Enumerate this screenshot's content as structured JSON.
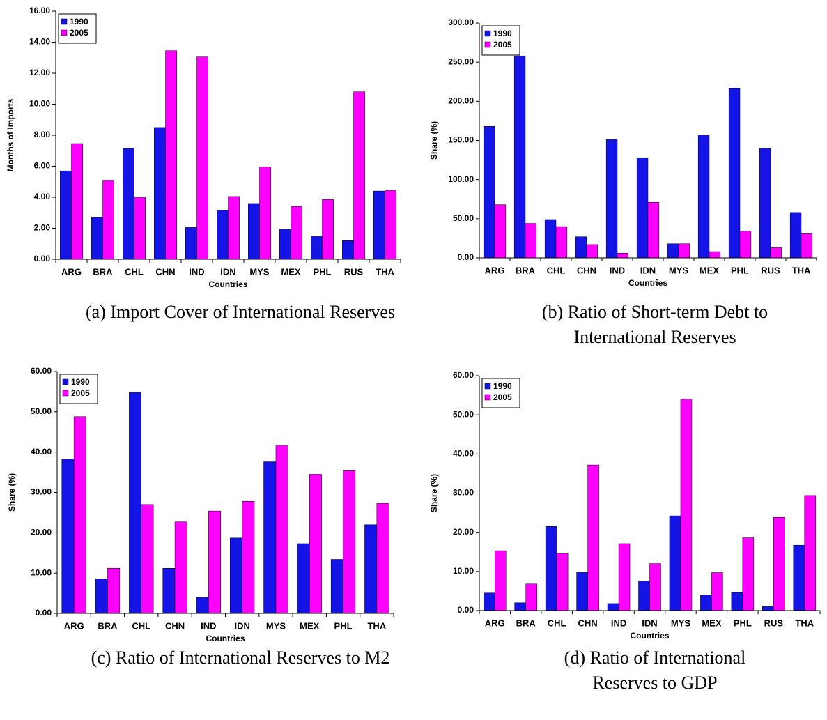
{
  "chart_data": [
    {
      "type": "bar",
      "caption": [
        "(a) Import Cover of International Reserves"
      ],
      "ylabel": "Months of Imports",
      "xlabel": "Countries",
      "categories": [
        "ARG",
        "BRA",
        "CHL",
        "CHN",
        "IND",
        "IDN",
        "MYS",
        "MEX",
        "PHL",
        "RUS",
        "THA"
      ],
      "series": [
        {
          "name": "1990",
          "color": "#1414e6",
          "values": [
            5.7,
            2.7,
            7.15,
            8.5,
            2.05,
            3.15,
            3.6,
            1.95,
            1.5,
            1.2,
            4.4
          ]
        },
        {
          "name": "2005",
          "color": "#ff00ff",
          "values": [
            7.46,
            5.1,
            4.0,
            13.45,
            13.05,
            4.05,
            5.95,
            3.4,
            3.85,
            10.8,
            4.45
          ]
        }
      ],
      "ylim": [
        0,
        16
      ],
      "yticks": [
        {
          "value": 0,
          "label": "0.00"
        },
        {
          "value": 2,
          "label": "2.00"
        },
        {
          "value": 4,
          "label": "4.00"
        },
        {
          "value": 6,
          "label": "6.00"
        },
        {
          "value": 8,
          "label": "8.00"
        },
        {
          "value": 10,
          "label": "10.00"
        },
        {
          "value": 12,
          "label": "12.00"
        },
        {
          "value": 14,
          "label": "14.00"
        },
        {
          "value": 16,
          "label": "16.00"
        }
      ],
      "legend": "top-left",
      "grid": false
    },
    {
      "type": "bar",
      "caption": [
        "(b) Ratio of Short-term Debt to",
        "International Reserves"
      ],
      "ylabel": "Share (%)",
      "xlabel": "Countries",
      "categories": [
        "ARG",
        "BRA",
        "CHL",
        "CHN",
        "IND",
        "IDN",
        "MYS",
        "MEX",
        "PHL",
        "RUS",
        "THA"
      ],
      "series": [
        {
          "name": "1990",
          "color": "#1414e6",
          "values": [
            168,
            258,
            49,
            27,
            151,
            128,
            18,
            157,
            217,
            140,
            58
          ]
        },
        {
          "name": "2005",
          "color": "#ff00ff",
          "values": [
            68,
            44,
            40,
            17,
            6,
            71,
            18,
            8,
            34,
            13,
            31
          ]
        }
      ],
      "ylim": [
        0,
        300
      ],
      "yticks": [
        {
          "value": 0,
          "label": "0.00"
        },
        {
          "value": 50,
          "label": "50.00"
        },
        {
          "value": 100,
          "label": "100.00"
        },
        {
          "value": 150,
          "label": "150.00"
        },
        {
          "value": 200,
          "label": "200.00"
        },
        {
          "value": 250,
          "label": "250.00"
        },
        {
          "value": 300,
          "label": "300.00"
        }
      ],
      "legend": "top-left",
      "grid": false
    },
    {
      "type": "bar",
      "caption": [
        "(c) Ratio of International Reserves to M2"
      ],
      "ylabel": "Share (%)",
      "xlabel": "Countries",
      "categories": [
        "ARG",
        "BRA",
        "CHL",
        "CHN",
        "IND",
        "IDN",
        "MYS",
        "MEX",
        "PHL",
        "THA"
      ],
      "series": [
        {
          "name": "1990",
          "color": "#1414e6",
          "values": [
            38.3,
            8.6,
            54.8,
            11.2,
            4.0,
            18.7,
            37.6,
            17.3,
            13.4,
            22.0
          ]
        },
        {
          "name": "2005",
          "color": "#ff00ff",
          "values": [
            48.8,
            11.2,
            27.0,
            22.7,
            25.4,
            27.8,
            41.7,
            34.5,
            35.4,
            27.3
          ]
        }
      ],
      "ylim": [
        0,
        60
      ],
      "yticks": [
        {
          "value": 0,
          "label": "0.00"
        },
        {
          "value": 10,
          "label": "10.00"
        },
        {
          "value": 20,
          "label": "20.00"
        },
        {
          "value": 30,
          "label": "30.00"
        },
        {
          "value": 40,
          "label": "40.00"
        },
        {
          "value": 50,
          "label": "50.00"
        },
        {
          "value": 60,
          "label": "60.00"
        }
      ],
      "legend": "top-left",
      "grid": false
    },
    {
      "type": "bar",
      "caption": [
        "(d) Ratio of International",
        "Reserves to GDP"
      ],
      "ylabel": "Share (%)",
      "xlabel": "Countries",
      "categories": [
        "ARG",
        "BRA",
        "CHL",
        "CHN",
        "IND",
        "IDN",
        "MYS",
        "MEX",
        "PHL",
        "RUS",
        "THA"
      ],
      "series": [
        {
          "name": "1990",
          "color": "#1414e6",
          "values": [
            4.5,
            2.0,
            21.5,
            9.8,
            1.8,
            7.6,
            24.2,
            4.0,
            4.6,
            1.0,
            16.7
          ]
        },
        {
          "name": "2005",
          "color": "#ff00ff",
          "values": [
            15.3,
            6.8,
            14.6,
            37.2,
            17.1,
            12.0,
            54.0,
            9.7,
            18.6,
            23.8,
            29.4
          ]
        }
      ],
      "ylim": [
        0,
        60
      ],
      "yticks": [
        {
          "value": 0,
          "label": "0.00"
        },
        {
          "value": 10,
          "label": "10.00"
        },
        {
          "value": 20,
          "label": "20.00"
        },
        {
          "value": 30,
          "label": "30.00"
        },
        {
          "value": 40,
          "label": "40.00"
        },
        {
          "value": 50,
          "label": "50.00"
        },
        {
          "value": 60,
          "label": "60.00"
        }
      ],
      "legend": "top-left",
      "grid": false
    }
  ]
}
